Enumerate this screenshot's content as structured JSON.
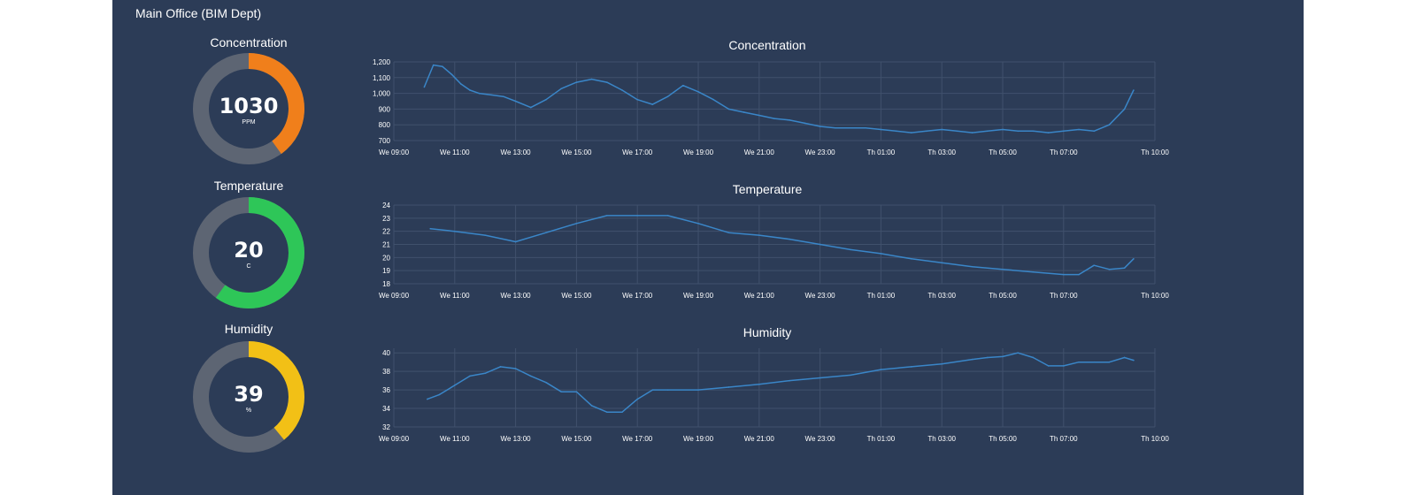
{
  "panel": {
    "title": "Main Office (BIM Dept)"
  },
  "gauges": [
    {
      "title": "Concentration",
      "value": "1030",
      "unit": "PPM",
      "fraction": 0.4,
      "color": "#f07f1b"
    },
    {
      "title": "Temperature",
      "value": "20",
      "unit": "C",
      "fraction": 0.6,
      "color": "#2ec658"
    },
    {
      "title": "Humidity",
      "value": "39",
      "unit": "%",
      "fraction": 0.39,
      "color": "#f2c016"
    }
  ],
  "colors": {
    "panel_bg": "#2c3c57",
    "gauge_track": "#5d6573",
    "series_line": "#3a86c8"
  },
  "chart_data": [
    {
      "type": "line",
      "title": "Concentration",
      "x_ticks": [
        "We 09:00",
        "We 11:00",
        "We 13:00",
        "We 15:00",
        "We 17:00",
        "We 19:00",
        "We 21:00",
        "We 23:00",
        "Th 01:00",
        "Th 03:00",
        "Th 05:00",
        "Th 07:00",
        "Th 10:00"
      ],
      "y_ticks": [
        "700",
        "800",
        "900",
        "1,000",
        "1,100",
        "1,200"
      ],
      "ylim": [
        700,
        1200
      ],
      "x_hours": [
        1,
        1.3,
        1.6,
        1.9,
        2.2,
        2.5,
        2.8,
        3.2,
        3.6,
        4,
        4.5,
        5,
        5.5,
        6,
        6.5,
        7,
        7.5,
        8,
        8.5,
        9,
        9.5,
        10,
        10.5,
        11,
        11.5,
        12,
        12.5,
        13,
        13.5,
        14,
        14.5,
        15,
        15.5,
        16,
        16.5,
        17,
        17.5,
        18,
        18.5,
        19,
        19.5,
        20,
        20.5,
        21,
        21.5,
        22,
        22.5,
        23,
        23.5,
        24,
        24.3
      ],
      "values": [
        1040,
        1180,
        1170,
        1120,
        1060,
        1020,
        1000,
        990,
        980,
        950,
        910,
        960,
        1030,
        1070,
        1090,
        1070,
        1020,
        960,
        930,
        980,
        1050,
        1010,
        960,
        900,
        880,
        860,
        840,
        830,
        810,
        790,
        780,
        780,
        780,
        770,
        760,
        750,
        760,
        770,
        760,
        750,
        760,
        770,
        760,
        760,
        750,
        760,
        770,
        760,
        800,
        900,
        1020
      ]
    },
    {
      "type": "line",
      "title": "Temperature",
      "x_ticks": [
        "We 09:00",
        "We 11:00",
        "We 13:00",
        "We 15:00",
        "We 17:00",
        "We 19:00",
        "We 21:00",
        "We 23:00",
        "Th 01:00",
        "Th 03:00",
        "Th 05:00",
        "Th 07:00",
        "Th 10:00"
      ],
      "y_ticks": [
        "18",
        "19",
        "20",
        "21",
        "22",
        "23",
        "24"
      ],
      "ylim": [
        18,
        24
      ],
      "x_hours": [
        1.2,
        2,
        3,
        4,
        5,
        6,
        7,
        8,
        9,
        10,
        11,
        12,
        13,
        14,
        15,
        16,
        17,
        18,
        19,
        20,
        21,
        22,
        22.5,
        23,
        23.5,
        24,
        24.3
      ],
      "values": [
        22.2,
        22,
        21.7,
        21.2,
        21.9,
        22.6,
        23.2,
        23.2,
        23.2,
        22.6,
        21.9,
        21.7,
        21.4,
        21.0,
        20.6,
        20.3,
        19.9,
        19.6,
        19.3,
        19.1,
        18.9,
        18.7,
        18.7,
        19.4,
        19.1,
        19.2,
        19.9
      ]
    },
    {
      "type": "line",
      "title": "Humidity",
      "x_ticks": [
        "We 09:00",
        "We 11:00",
        "We 13:00",
        "We 15:00",
        "We 17:00",
        "We 19:00",
        "We 21:00",
        "We 23:00",
        "Th 01:00",
        "Th 03:00",
        "Th 05:00",
        "Th 07:00",
        "Th 10:00"
      ],
      "y_ticks": [
        "32",
        "34",
        "36",
        "38",
        "40"
      ],
      "ylim": [
        32,
        40.5
      ],
      "x_hours": [
        1.1,
        1.5,
        2,
        2.5,
        3,
        3.5,
        4,
        4.5,
        5,
        5.5,
        6,
        6.5,
        7,
        7.5,
        8,
        8.5,
        9,
        10,
        11,
        12,
        13,
        14,
        15,
        16,
        17,
        18,
        19,
        19.5,
        20,
        20.5,
        21,
        21.5,
        22,
        22.5,
        23,
        23.5,
        24,
        24.3
      ],
      "values": [
        35,
        35.5,
        36.5,
        37.5,
        37.8,
        38.5,
        38.3,
        37.5,
        36.8,
        35.8,
        35.8,
        34.3,
        33.6,
        33.6,
        35,
        36,
        36,
        36,
        36.3,
        36.6,
        37,
        37.3,
        37.6,
        38.2,
        38.5,
        38.8,
        39.3,
        39.5,
        39.6,
        40,
        39.5,
        38.6,
        38.6,
        39,
        39,
        39,
        39.5,
        39.2
      ]
    }
  ]
}
